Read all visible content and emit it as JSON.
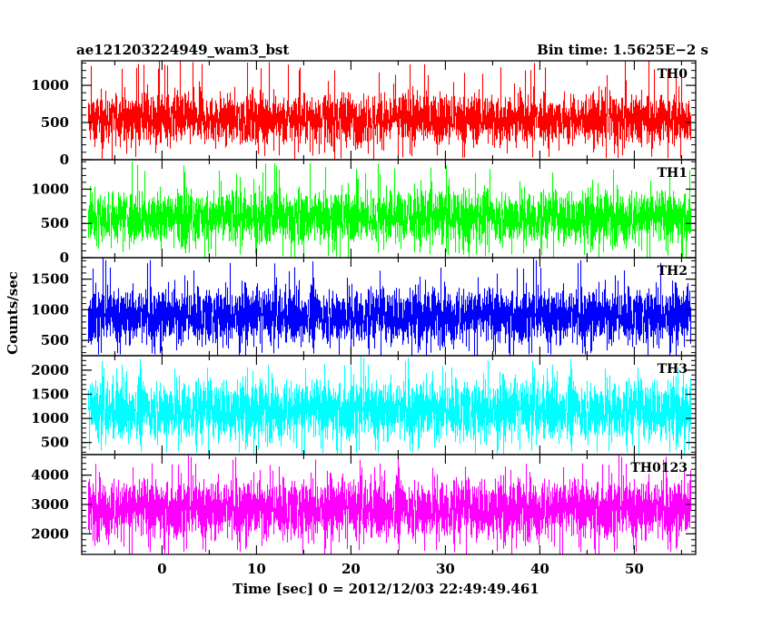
{
  "header": {
    "title": "ae121203224949_wam3_bst",
    "bin_time": "Bin time: 1.5625E−2 s"
  },
  "chart_data": {
    "type": "line",
    "title": "ae121203224949_wam3_bst",
    "subtitle": "Bin time: 1.5625E−2 s",
    "xlabel": "Time [sec] 0 = 2012/12/03 22:49:49.461",
    "ylabel": "Counts/sec",
    "xlim": [
      -8.5,
      56.5
    ],
    "data_x_range": [
      -7.8,
      55.9
    ],
    "bin_time_s": 0.015625,
    "x_ticks": [
      0,
      10,
      20,
      30,
      40,
      50
    ],
    "grid": false,
    "panels": [
      {
        "name": "TH0",
        "color": "#ff0000",
        "ylim": [
          0,
          1330
        ],
        "y_ticks": [
          0,
          500,
          1000
        ],
        "typical_range": [
          100,
          1000
        ],
        "peak": 1330
      },
      {
        "name": "TH1",
        "color": "#00ff00",
        "ylim": [
          0,
          1430
        ],
        "y_ticks": [
          0,
          500,
          1000
        ],
        "typical_range": [
          80,
          1100
        ],
        "peak": 1430
      },
      {
        "name": "TH2",
        "color": "#0000ff",
        "ylim": [
          250,
          1850
        ],
        "y_ticks": [
          500,
          1000,
          1500
        ],
        "typical_range": [
          300,
          1500
        ],
        "peak": 1850
      },
      {
        "name": "TH3",
        "color": "#00ffff",
        "ylim": [
          250,
          2300
        ],
        "y_ticks": [
          500,
          1000,
          1500,
          2000
        ],
        "typical_range": [
          350,
          2000
        ],
        "peak": 2300
      },
      {
        "name": "TH0123",
        "color": "#ff00ff",
        "ylim": [
          1300,
          4700
        ],
        "y_ticks": [
          2000,
          3000,
          4000
        ],
        "typical_range": [
          1500,
          4200
        ],
        "peak": 4700
      }
    ]
  }
}
